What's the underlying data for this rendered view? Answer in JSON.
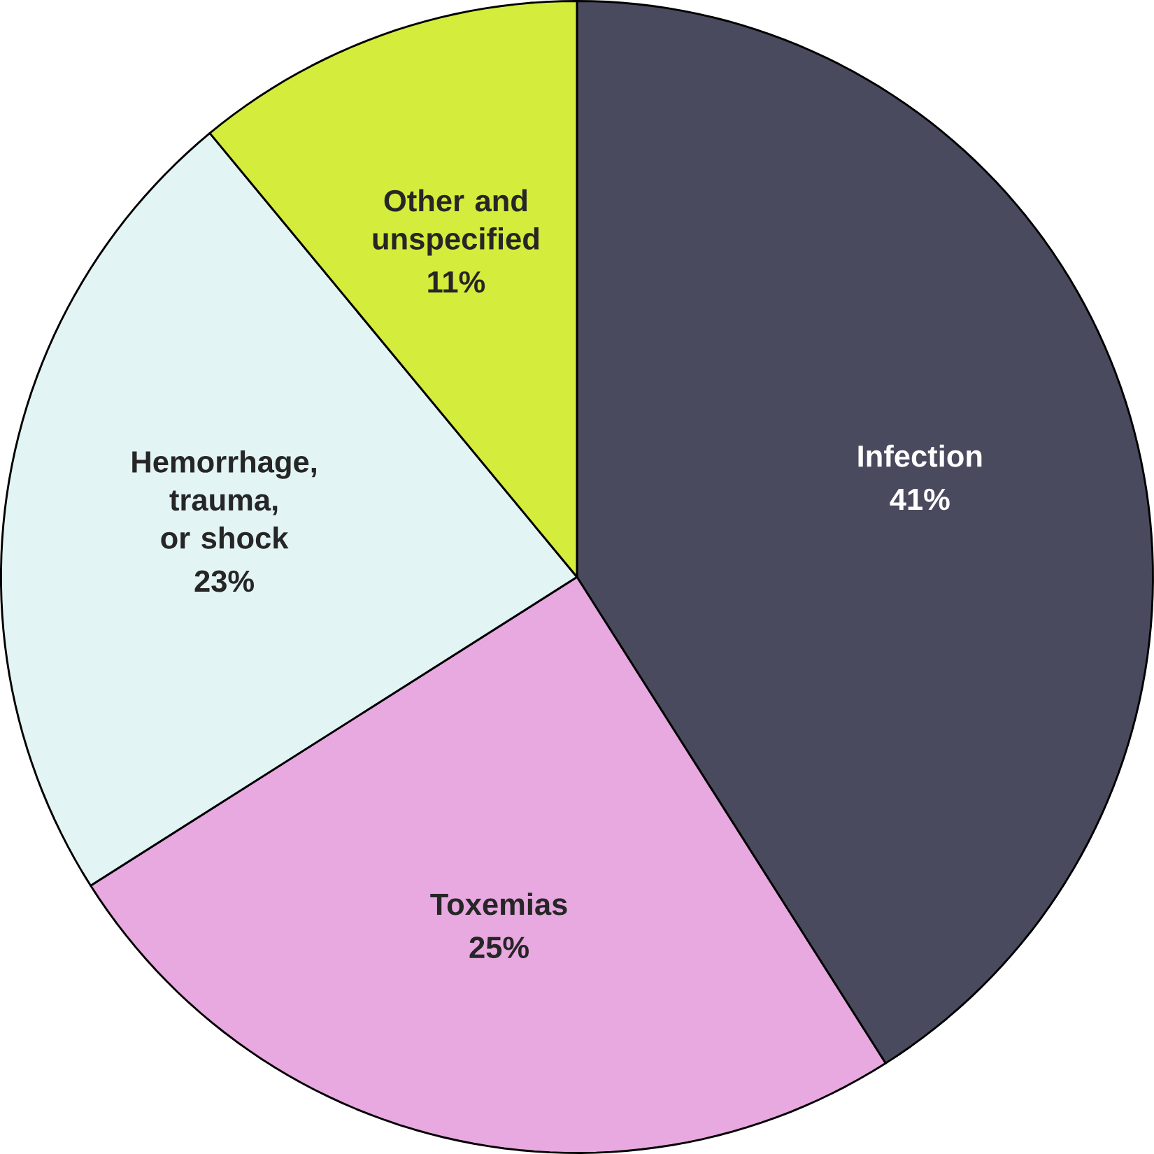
{
  "chart_data": {
    "type": "pie",
    "categories": [
      "Infection",
      "Toxemias",
      "Hemorrhage, trauma, or shock",
      "Other and unspecified"
    ],
    "values": [
      41,
      25,
      23,
      11
    ],
    "colors": [
      "#4a4a5e",
      "#e8a8e0",
      "#e2f4f4",
      "#d4ec3c"
    ],
    "value_labels": [
      "41%",
      "25%",
      "23%",
      "11%"
    ]
  }
}
